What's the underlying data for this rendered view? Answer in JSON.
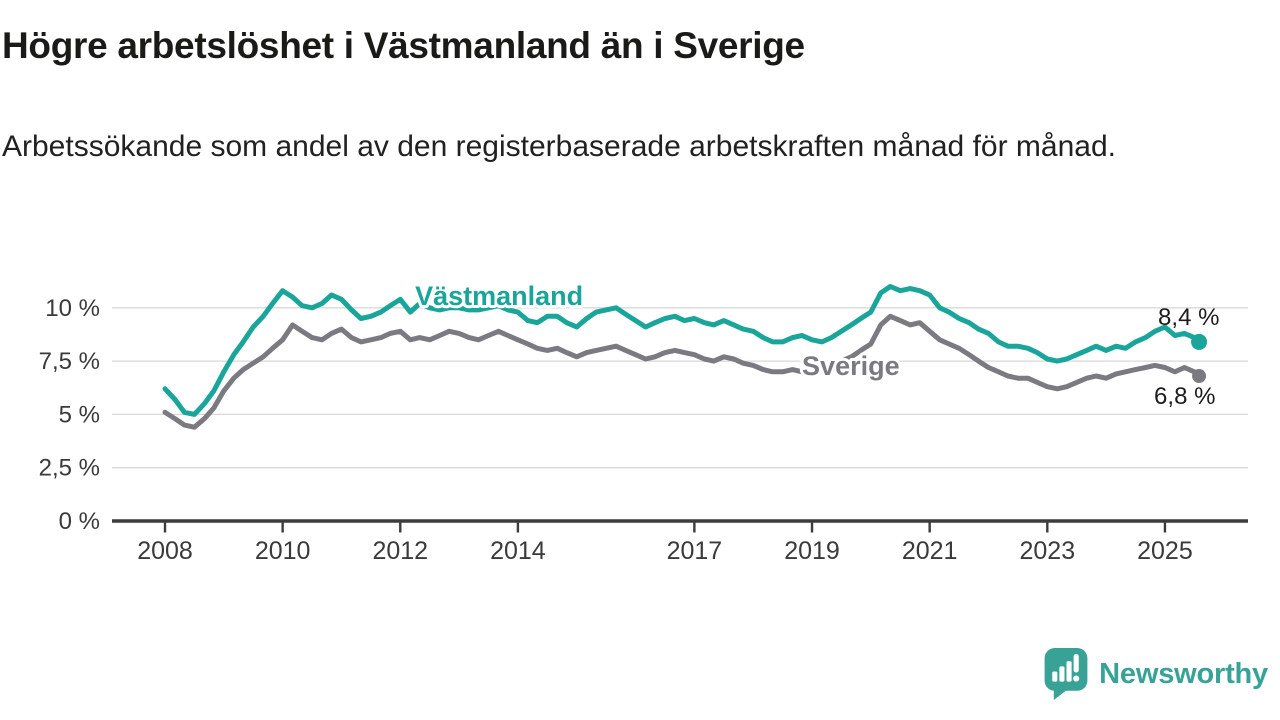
{
  "header": {
    "title": "Högre arbetslöshet i Västmanland än i Sverige",
    "subtitle": "Arbetssökande som andel av den registerbaserade arbetskraften månad för månad."
  },
  "chart_data": {
    "type": "line",
    "title": "Högre arbetslöshet i Västmanland än i Sverige",
    "subtitle": "Arbetssökande som andel av den registerbaserade arbetskraften månad för månad.",
    "unit": "%",
    "grid": true,
    "legend_position": "inline-labels",
    "colors": {
      "vastmanland": "#1aa59b",
      "sverige": "#7a7a80",
      "axis": "#3c3c3c",
      "gridline": "#d8d8d8",
      "tick_text": "#3a3a3a",
      "end_label_text": "#1c1c1c"
    },
    "y_axis": {
      "range": [
        0,
        11.5
      ],
      "ticks": [
        {
          "v": 0,
          "label": "0 %"
        },
        {
          "v": 2.5,
          "label": "2,5 %"
        },
        {
          "v": 5,
          "label": "5 %"
        },
        {
          "v": 7.5,
          "label": "7,5 %"
        },
        {
          "v": 10,
          "label": "10 %"
        }
      ]
    },
    "x_axis": {
      "range": [
        2007.9,
        2026.4
      ],
      "ticks": [
        {
          "v": 2008,
          "label": "2008"
        },
        {
          "v": 2010,
          "label": "2010"
        },
        {
          "v": 2012,
          "label": "2012"
        },
        {
          "v": 2014,
          "label": "2014"
        },
        {
          "v": 2017,
          "label": "2017"
        },
        {
          "v": 2019,
          "label": "2019"
        },
        {
          "v": 2021,
          "label": "2021"
        },
        {
          "v": 2023,
          "label": "2023"
        },
        {
          "v": 2025,
          "label": "2025"
        }
      ]
    },
    "series": [
      {
        "id": "sverige",
        "name": "Sverige",
        "color": "#7a7a80",
        "end_value": 6.8,
        "end_label": "6,8 %",
        "end_label_offset": [
          -45,
          28
        ],
        "dot_radius": 7,
        "label_anchor": {
          "t": 2019.66,
          "v": 7.27
        },
        "points": [
          [
            2008.0,
            5.1
          ],
          [
            2008.17,
            4.8
          ],
          [
            2008.33,
            4.5
          ],
          [
            2008.5,
            4.4
          ],
          [
            2008.67,
            4.8
          ],
          [
            2008.83,
            5.3
          ],
          [
            2009.0,
            6.1
          ],
          [
            2009.17,
            6.7
          ],
          [
            2009.33,
            7.1
          ],
          [
            2009.5,
            7.4
          ],
          [
            2009.67,
            7.7
          ],
          [
            2009.83,
            8.1
          ],
          [
            2010.0,
            8.5
          ],
          [
            2010.17,
            9.2
          ],
          [
            2010.33,
            8.9
          ],
          [
            2010.5,
            8.6
          ],
          [
            2010.67,
            8.5
          ],
          [
            2010.83,
            8.8
          ],
          [
            2011.0,
            9.0
          ],
          [
            2011.17,
            8.6
          ],
          [
            2011.33,
            8.4
          ],
          [
            2011.5,
            8.5
          ],
          [
            2011.67,
            8.6
          ],
          [
            2011.83,
            8.8
          ],
          [
            2012.0,
            8.9
          ],
          [
            2012.17,
            8.5
          ],
          [
            2012.33,
            8.6
          ],
          [
            2012.5,
            8.5
          ],
          [
            2012.67,
            8.7
          ],
          [
            2012.83,
            8.9
          ],
          [
            2013.0,
            8.8
          ],
          [
            2013.17,
            8.6
          ],
          [
            2013.33,
            8.5
          ],
          [
            2013.5,
            8.7
          ],
          [
            2013.67,
            8.9
          ],
          [
            2013.83,
            8.7
          ],
          [
            2014.0,
            8.5
          ],
          [
            2014.17,
            8.3
          ],
          [
            2014.33,
            8.1
          ],
          [
            2014.5,
            8.0
          ],
          [
            2014.67,
            8.1
          ],
          [
            2014.83,
            7.9
          ],
          [
            2015.0,
            7.7
          ],
          [
            2015.17,
            7.9
          ],
          [
            2015.33,
            8.0
          ],
          [
            2015.5,
            8.1
          ],
          [
            2015.67,
            8.2
          ],
          [
            2015.83,
            8.0
          ],
          [
            2016.0,
            7.8
          ],
          [
            2016.17,
            7.6
          ],
          [
            2016.33,
            7.7
          ],
          [
            2016.5,
            7.9
          ],
          [
            2016.67,
            8.0
          ],
          [
            2016.83,
            7.9
          ],
          [
            2017.0,
            7.8
          ],
          [
            2017.17,
            7.6
          ],
          [
            2017.33,
            7.5
          ],
          [
            2017.5,
            7.7
          ],
          [
            2017.67,
            7.6
          ],
          [
            2017.83,
            7.4
          ],
          [
            2018.0,
            7.3
          ],
          [
            2018.17,
            7.1
          ],
          [
            2018.33,
            7.0
          ],
          [
            2018.5,
            7.0
          ],
          [
            2018.67,
            7.1
          ],
          [
            2018.83,
            7.0
          ],
          [
            2019.0,
            7.0
          ],
          [
            2019.17,
            7.1
          ],
          [
            2019.33,
            7.3
          ],
          [
            2019.5,
            7.5
          ],
          [
            2019.67,
            7.7
          ],
          [
            2019.83,
            8.0
          ],
          [
            2020.0,
            8.3
          ],
          [
            2020.17,
            9.2
          ],
          [
            2020.33,
            9.6
          ],
          [
            2020.5,
            9.4
          ],
          [
            2020.67,
            9.2
          ],
          [
            2020.83,
            9.3
          ],
          [
            2021.0,
            8.9
          ],
          [
            2021.17,
            8.5
          ],
          [
            2021.33,
            8.3
          ],
          [
            2021.5,
            8.1
          ],
          [
            2021.67,
            7.8
          ],
          [
            2021.83,
            7.5
          ],
          [
            2022.0,
            7.2
          ],
          [
            2022.17,
            7.0
          ],
          [
            2022.33,
            6.8
          ],
          [
            2022.5,
            6.7
          ],
          [
            2022.67,
            6.7
          ],
          [
            2022.83,
            6.5
          ],
          [
            2023.0,
            6.3
          ],
          [
            2023.17,
            6.2
          ],
          [
            2023.33,
            6.3
          ],
          [
            2023.5,
            6.5
          ],
          [
            2023.67,
            6.7
          ],
          [
            2023.83,
            6.8
          ],
          [
            2024.0,
            6.7
          ],
          [
            2024.17,
            6.9
          ],
          [
            2024.33,
            7.0
          ],
          [
            2024.5,
            7.1
          ],
          [
            2024.67,
            7.2
          ],
          [
            2024.83,
            7.3
          ],
          [
            2025.0,
            7.2
          ],
          [
            2025.17,
            7.0
          ],
          [
            2025.33,
            7.2
          ],
          [
            2025.5,
            7.0
          ],
          [
            2025.58,
            6.8
          ]
        ]
      },
      {
        "id": "vastmanland",
        "name": "Västmanland",
        "color": "#1aa59b",
        "end_value": 8.4,
        "end_label": "8,4 %",
        "end_label_offset": [
          -41,
          -17
        ],
        "dot_radius": 8,
        "label_anchor": {
          "t": 2013.68,
          "v": 10.55
        },
        "points": [
          [
            2008.0,
            6.2
          ],
          [
            2008.17,
            5.7
          ],
          [
            2008.33,
            5.1
          ],
          [
            2008.5,
            5.0
          ],
          [
            2008.67,
            5.5
          ],
          [
            2008.83,
            6.1
          ],
          [
            2009.0,
            7.0
          ],
          [
            2009.17,
            7.8
          ],
          [
            2009.33,
            8.4
          ],
          [
            2009.5,
            9.1
          ],
          [
            2009.67,
            9.6
          ],
          [
            2009.83,
            10.2
          ],
          [
            2010.0,
            10.8
          ],
          [
            2010.17,
            10.5
          ],
          [
            2010.33,
            10.1
          ],
          [
            2010.5,
            10.0
          ],
          [
            2010.67,
            10.2
          ],
          [
            2010.83,
            10.6
          ],
          [
            2011.0,
            10.4
          ],
          [
            2011.17,
            9.9
          ],
          [
            2011.33,
            9.5
          ],
          [
            2011.5,
            9.6
          ],
          [
            2011.67,
            9.8
          ],
          [
            2011.83,
            10.1
          ],
          [
            2012.0,
            10.4
          ],
          [
            2012.17,
            9.8
          ],
          [
            2012.33,
            10.2
          ],
          [
            2012.5,
            10.0
          ],
          [
            2012.67,
            9.9
          ],
          [
            2012.83,
            10.0
          ],
          [
            2013.0,
            10.0
          ],
          [
            2013.17,
            9.9
          ],
          [
            2013.33,
            9.9
          ],
          [
            2013.5,
            10.0
          ],
          [
            2013.67,
            10.1
          ],
          [
            2013.83,
            9.9
          ],
          [
            2014.0,
            9.8
          ],
          [
            2014.17,
            9.4
          ],
          [
            2014.33,
            9.3
          ],
          [
            2014.5,
            9.6
          ],
          [
            2014.67,
            9.6
          ],
          [
            2014.83,
            9.3
          ],
          [
            2015.0,
            9.1
          ],
          [
            2015.17,
            9.5
          ],
          [
            2015.33,
            9.8
          ],
          [
            2015.5,
            9.9
          ],
          [
            2015.67,
            10.0
          ],
          [
            2015.83,
            9.7
          ],
          [
            2016.0,
            9.4
          ],
          [
            2016.17,
            9.1
          ],
          [
            2016.33,
            9.3
          ],
          [
            2016.5,
            9.5
          ],
          [
            2016.67,
            9.6
          ],
          [
            2016.83,
            9.4
          ],
          [
            2017.0,
            9.5
          ],
          [
            2017.17,
            9.3
          ],
          [
            2017.33,
            9.2
          ],
          [
            2017.5,
            9.4
          ],
          [
            2017.67,
            9.2
          ],
          [
            2017.83,
            9.0
          ],
          [
            2018.0,
            8.9
          ],
          [
            2018.17,
            8.6
          ],
          [
            2018.33,
            8.4
          ],
          [
            2018.5,
            8.4
          ],
          [
            2018.67,
            8.6
          ],
          [
            2018.83,
            8.7
          ],
          [
            2019.0,
            8.5
          ],
          [
            2019.17,
            8.4
          ],
          [
            2019.33,
            8.6
          ],
          [
            2019.5,
            8.9
          ],
          [
            2019.67,
            9.2
          ],
          [
            2019.83,
            9.5
          ],
          [
            2020.0,
            9.8
          ],
          [
            2020.17,
            10.7
          ],
          [
            2020.33,
            11.0
          ],
          [
            2020.5,
            10.8
          ],
          [
            2020.67,
            10.9
          ],
          [
            2020.83,
            10.8
          ],
          [
            2021.0,
            10.6
          ],
          [
            2021.17,
            10.0
          ],
          [
            2021.33,
            9.8
          ],
          [
            2021.5,
            9.5
          ],
          [
            2021.67,
            9.3
          ],
          [
            2021.83,
            9.0
          ],
          [
            2022.0,
            8.8
          ],
          [
            2022.17,
            8.4
          ],
          [
            2022.33,
            8.2
          ],
          [
            2022.5,
            8.2
          ],
          [
            2022.67,
            8.1
          ],
          [
            2022.83,
            7.9
          ],
          [
            2023.0,
            7.6
          ],
          [
            2023.17,
            7.5
          ],
          [
            2023.33,
            7.6
          ],
          [
            2023.5,
            7.8
          ],
          [
            2023.67,
            8.0
          ],
          [
            2023.83,
            8.2
          ],
          [
            2024.0,
            8.0
          ],
          [
            2024.17,
            8.2
          ],
          [
            2024.33,
            8.1
          ],
          [
            2024.5,
            8.4
          ],
          [
            2024.67,
            8.6
          ],
          [
            2024.83,
            8.9
          ],
          [
            2025.0,
            9.1
          ],
          [
            2025.17,
            8.7
          ],
          [
            2025.33,
            8.8
          ],
          [
            2025.5,
            8.6
          ],
          [
            2025.58,
            8.4
          ]
        ]
      }
    ]
  },
  "footer": {
    "brand": "Newsworthy",
    "brand_color": "#38a296"
  }
}
